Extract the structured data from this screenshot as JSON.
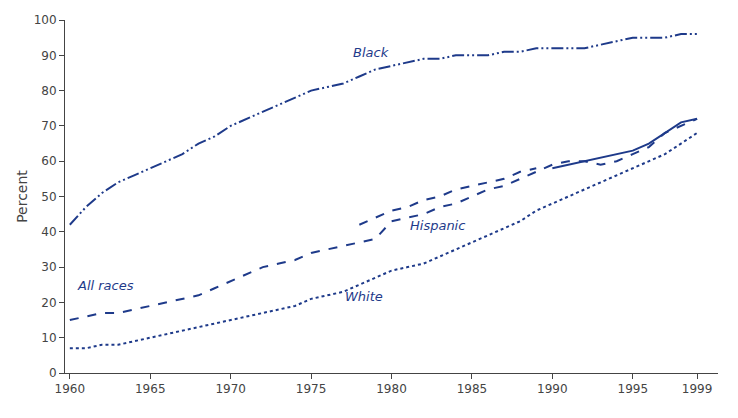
{
  "chart_data": {
    "type": "line",
    "ylabel": "Percent",
    "color": "#1e3a8a",
    "x": [
      1960,
      1961,
      1962,
      1963,
      1964,
      1965,
      1966,
      1967,
      1968,
      1969,
      1970,
      1971,
      1972,
      1973,
      1974,
      1975,
      1976,
      1977,
      1978,
      1979,
      1980,
      1981,
      1982,
      1983,
      1984,
      1985,
      1986,
      1987,
      1988,
      1989,
      1990,
      1991,
      1992,
      1993,
      1994,
      1995,
      1996,
      1997,
      1998,
      1999
    ],
    "series": [
      {
        "name": "Black",
        "line_style": "dashdotdot",
        "values": [
          42,
          47,
          51,
          54,
          56,
          58,
          60,
          62,
          65,
          67,
          70,
          72,
          74,
          76,
          78,
          80,
          81,
          82,
          84,
          86,
          87,
          88,
          89,
          89,
          90,
          90,
          90,
          91,
          91,
          92,
          92,
          92,
          92,
          93,
          94,
          95,
          95,
          95,
          96,
          96
        ]
      },
      {
        "name": "All races",
        "line_style": "dash",
        "values": [
          15,
          16,
          17,
          17,
          18,
          19,
          20,
          21,
          22,
          24,
          26,
          28,
          30,
          31,
          32,
          34,
          35,
          36,
          37,
          38,
          43,
          44,
          45,
          47,
          48,
          50,
          52,
          53,
          55,
          57,
          59,
          60,
          60,
          59,
          60,
          62,
          64,
          68,
          70,
          72
        ]
      },
      {
        "name": "White",
        "line_style": "dot",
        "values": [
          7,
          7,
          8,
          8,
          9,
          10,
          11,
          12,
          13,
          14,
          15,
          16,
          17,
          18,
          19,
          21,
          22,
          23,
          25,
          27,
          29,
          30,
          31,
          33,
          35,
          37,
          39,
          41,
          43,
          46,
          48,
          50,
          52,
          54,
          56,
          58,
          60,
          62,
          65,
          68
        ]
      },
      {
        "name": "Hispanic",
        "line_style": "dash",
        "values": [
          null,
          null,
          null,
          null,
          null,
          null,
          null,
          null,
          null,
          null,
          null,
          null,
          null,
          null,
          null,
          null,
          null,
          null,
          42,
          44,
          46,
          47,
          49,
          50,
          52,
          53,
          54,
          55,
          57,
          58,
          null,
          null,
          null,
          null,
          null,
          null,
          null,
          null,
          null,
          null
        ]
      },
      {
        "name": "Hispanic",
        "line_style": "solid",
        "values": [
          null,
          null,
          null,
          null,
          null,
          null,
          null,
          null,
          null,
          null,
          null,
          null,
          null,
          null,
          null,
          null,
          null,
          null,
          null,
          null,
          null,
          null,
          null,
          null,
          null,
          null,
          null,
          null,
          null,
          null,
          58,
          59,
          60,
          61,
          62,
          63,
          65,
          68,
          71,
          72
        ]
      }
    ],
    "annotations": [
      {
        "text": "Black",
        "x": 1977.5,
        "y": 88
      },
      {
        "text": "All races",
        "x": 1960.3,
        "y": 22
      },
      {
        "text": "White",
        "x": 1977,
        "y": 19
      },
      {
        "text": "Hispanic",
        "x": 1981,
        "y": 39
      }
    ],
    "xlim": [
      1959.7,
      2000.3
    ],
    "xticks": [
      1960,
      1965,
      1970,
      1975,
      1980,
      1985,
      1990,
      1995,
      1999
    ],
    "ylim": [
      0,
      100
    ],
    "yticks": [
      0,
      10,
      20,
      30,
      40,
      50,
      60,
      70,
      80,
      90,
      100
    ],
    "grid": false
  }
}
